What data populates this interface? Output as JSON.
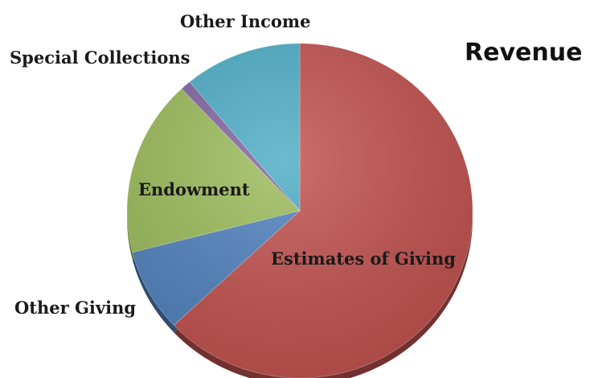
{
  "chart_data": {
    "type": "pie",
    "title": "Revenue",
    "start_angle_deg": 0,
    "direction": "clockwise",
    "slices": [
      {
        "label": "Estimates of Giving",
        "value": 63,
        "color": "#c0504d"
      },
      {
        "label": "Other Giving",
        "value": 8,
        "color": "#4f81bd"
      },
      {
        "label": "Endowment",
        "value": 17,
        "color": "#9bbb59"
      },
      {
        "label": "Special Collections",
        "value": 1,
        "color": "#8064a2"
      },
      {
        "label": "Other Income",
        "value": 11,
        "color": "#4bacc6"
      }
    ],
    "legend": "none",
    "style": "3d-tilted"
  }
}
